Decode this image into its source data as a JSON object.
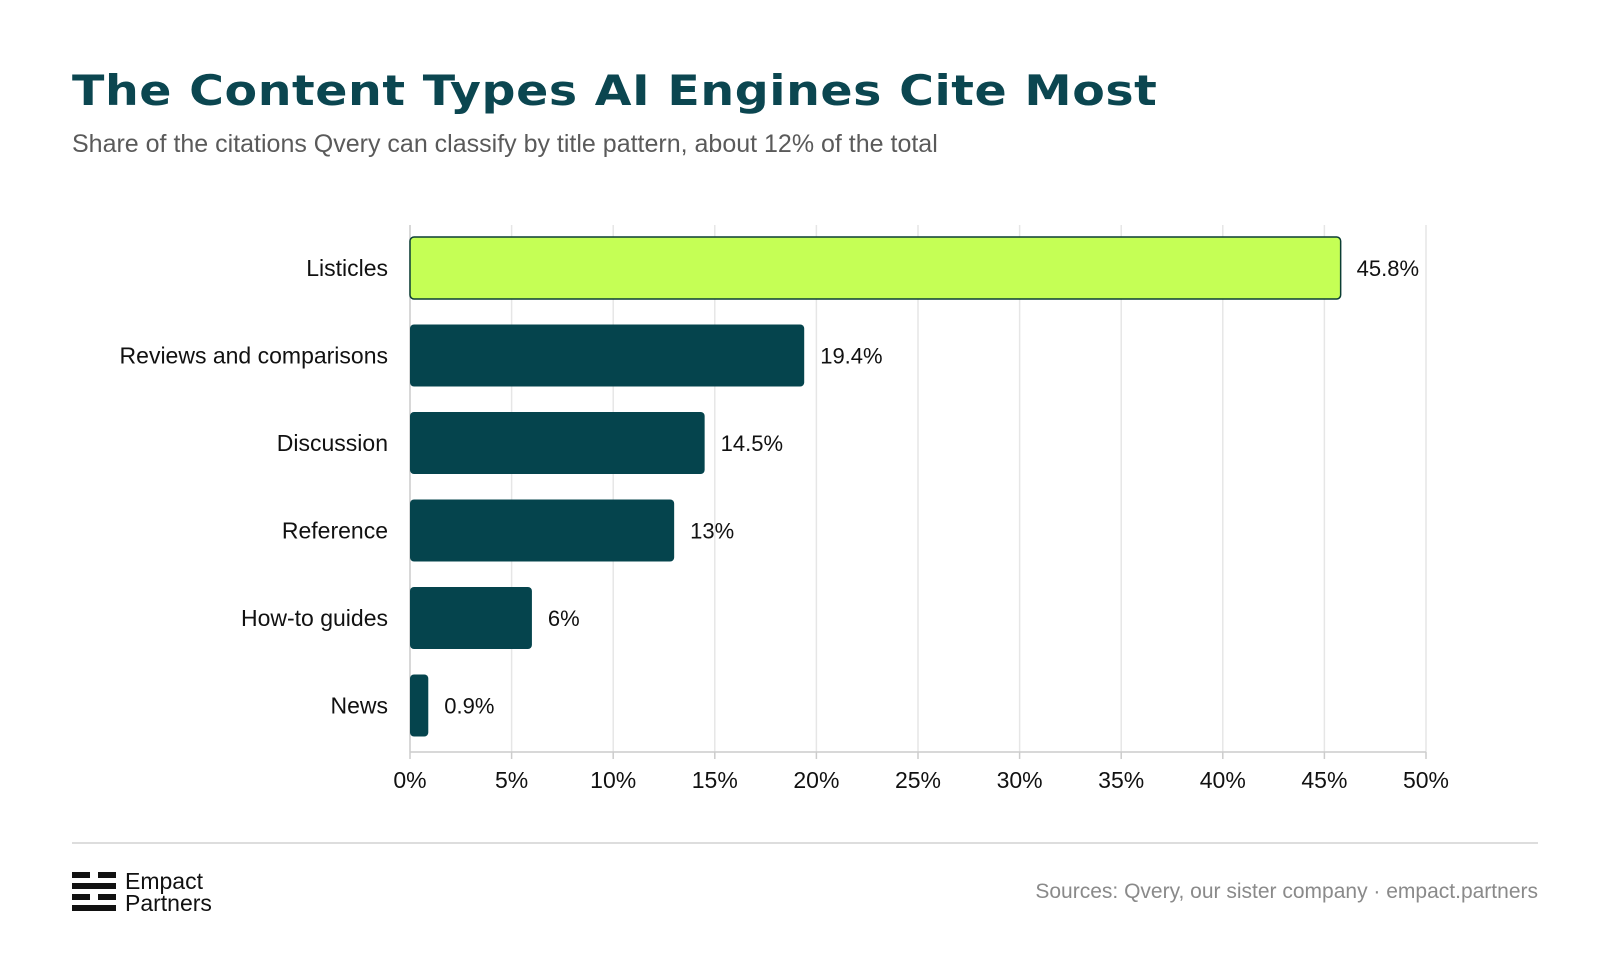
{
  "header": {
    "title": "The Content Types AI Engines Cite Most",
    "subtitle": "Share of the citations Qvery can classify by title pattern, about 12% of the total"
  },
  "chart_data": {
    "type": "bar",
    "orientation": "horizontal",
    "categories": [
      "Listicles",
      "Reviews and comparisons",
      "Discussion",
      "Reference",
      "How-to guides",
      "News"
    ],
    "values": [
      45.8,
      19.4,
      14.5,
      13,
      6,
      0.9
    ],
    "value_labels": [
      "45.8%",
      "19.4%",
      "14.5%",
      "13%",
      "6%",
      "0.9%"
    ],
    "xlim": [
      0,
      50
    ],
    "x_ticks": [
      0,
      5,
      10,
      15,
      20,
      25,
      30,
      35,
      40,
      45,
      50
    ],
    "x_tick_labels": [
      "0%",
      "5%",
      "10%",
      "15%",
      "20%",
      "25%",
      "30%",
      "35%",
      "40%",
      "45%",
      "50%"
    ],
    "grid": true,
    "colors": {
      "highlight": "#c5ff55",
      "bar": "#05444d",
      "grid": "#e6e6e6",
      "axis": "#cccccc"
    }
  },
  "footer": {
    "logo": {
      "name": "logo-mark-icon",
      "line1": "Empact",
      "line2": "Partners"
    },
    "sources": "Sources: Qvery, our sister company · empact.partners"
  }
}
